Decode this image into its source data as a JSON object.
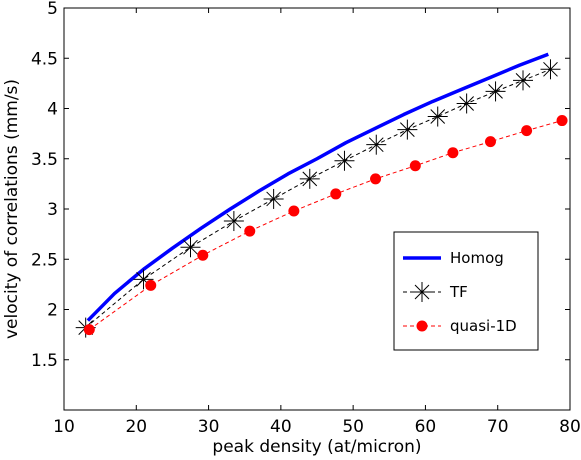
{
  "chart_data": {
    "type": "line",
    "title": "",
    "xlabel": "peak density (at/micron)",
    "ylabel": "velocity of correlations (mm/s)",
    "xlim": [
      10,
      80
    ],
    "ylim": [
      1,
      5
    ],
    "xticks": [
      "10",
      "20",
      "30",
      "40",
      "50",
      "60",
      "70",
      "80"
    ],
    "yticks": [
      "1.5",
      "2",
      "2.5",
      "3",
      "3.5",
      "4",
      "4.5",
      "5"
    ],
    "grid": false,
    "legend_position": "lower-right",
    "series": [
      {
        "name": "Homog",
        "style": "solid-line",
        "color": "#0000ff",
        "x": [
          13.3,
          17,
          21,
          25,
          29,
          33,
          37,
          41,
          45,
          49,
          53,
          57,
          61,
          65,
          69,
          73,
          77
        ],
        "y": [
          1.89,
          2.16,
          2.4,
          2.61,
          2.81,
          3.0,
          3.18,
          3.35,
          3.5,
          3.66,
          3.8,
          3.94,
          4.07,
          4.19,
          4.31,
          4.43,
          4.54
        ]
      },
      {
        "name": "TF",
        "style": "dashed-line-star-markers",
        "color": "#000000",
        "x": [
          13.0,
          21.0,
          27.5,
          33.5,
          39.0,
          44.0,
          48.8,
          53.2,
          57.5,
          61.7,
          65.7,
          69.7,
          73.5,
          77.3
        ],
        "y": [
          1.82,
          2.3,
          2.62,
          2.88,
          3.1,
          3.3,
          3.48,
          3.64,
          3.79,
          3.92,
          4.05,
          4.17,
          4.28,
          4.39
        ]
      },
      {
        "name": "quasi-1D",
        "style": "dashed-line-circle-markers",
        "color": "#ff0000",
        "x": [
          13.5,
          22.0,
          29.2,
          35.7,
          41.8,
          47.6,
          53.1,
          58.6,
          63.8,
          69.0,
          74.0,
          78.9
        ],
        "y": [
          1.8,
          2.24,
          2.54,
          2.78,
          2.98,
          3.15,
          3.3,
          3.43,
          3.56,
          3.67,
          3.78,
          3.88
        ]
      }
    ]
  }
}
